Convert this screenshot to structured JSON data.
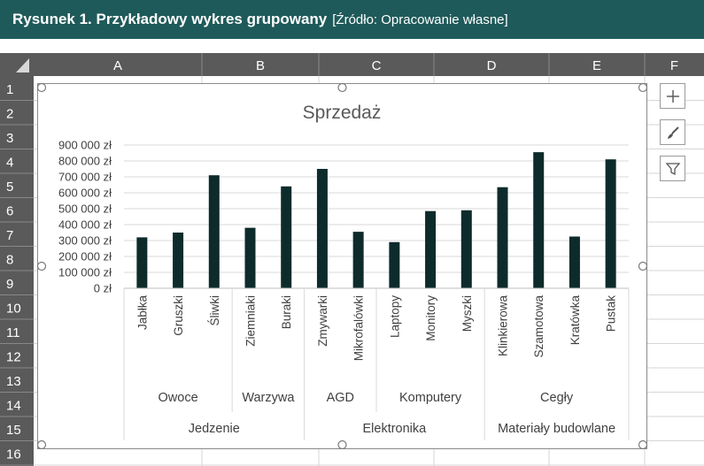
{
  "caption": {
    "label": "Rysunek 1. Przykładowy wykres grupowany",
    "source": "[Źródło: Opracowanie własne]"
  },
  "sheet": {
    "columns": [
      "A",
      "B",
      "C",
      "D",
      "E",
      "F"
    ],
    "rows": [
      "1",
      "2",
      "3",
      "4",
      "5",
      "6",
      "7",
      "8",
      "9",
      "10",
      "11",
      "12",
      "13",
      "14",
      "15",
      "16"
    ]
  },
  "chart_tools": {
    "icons": [
      "plus-icon",
      "brush-icon",
      "filter-icon"
    ]
  },
  "colors": {
    "bar": "#0e2b2b",
    "caption_bg": "#1f5a5a",
    "header_bg": "#5a5a5a"
  },
  "chart_data": {
    "type": "bar",
    "title": "Sprzedaż",
    "categories": [
      "Jabłka",
      "Gruszki",
      "Śliwki",
      "Ziemniaki",
      "Buraki",
      "Zmywarki",
      "Mikrofalówki",
      "Laptopy",
      "Monitory",
      "Myszki",
      "Klinkierowa",
      "Szamotowa",
      "Kratówka",
      "Pustak"
    ],
    "values": [
      320000,
      350000,
      710000,
      380000,
      640000,
      750000,
      355000,
      290000,
      485000,
      490000,
      635000,
      855000,
      325000,
      810000
    ],
    "groups_level1": [
      {
        "label": "Owoce",
        "count": 3
      },
      {
        "label": "Warzywa",
        "count": 2
      },
      {
        "label": "AGD",
        "count": 2
      },
      {
        "label": "Komputery",
        "count": 3
      },
      {
        "label": "Cegły",
        "count": 4
      }
    ],
    "groups_level2": [
      {
        "label": "Jedzenie",
        "count": 5
      },
      {
        "label": "Elektronika",
        "count": 5
      },
      {
        "label": "Materiały budowlane",
        "count": 4
      }
    ],
    "y_ticks": [
      "0 zł",
      "100 000 zł",
      "200 000 zł",
      "300 000 zł",
      "400 000 zł",
      "500 000 zł",
      "600 000 zł",
      "700 000 zł",
      "800 000 zł",
      "900 000 zł"
    ],
    "ylim": [
      0,
      900000
    ],
    "grid": true,
    "legend": "none"
  }
}
